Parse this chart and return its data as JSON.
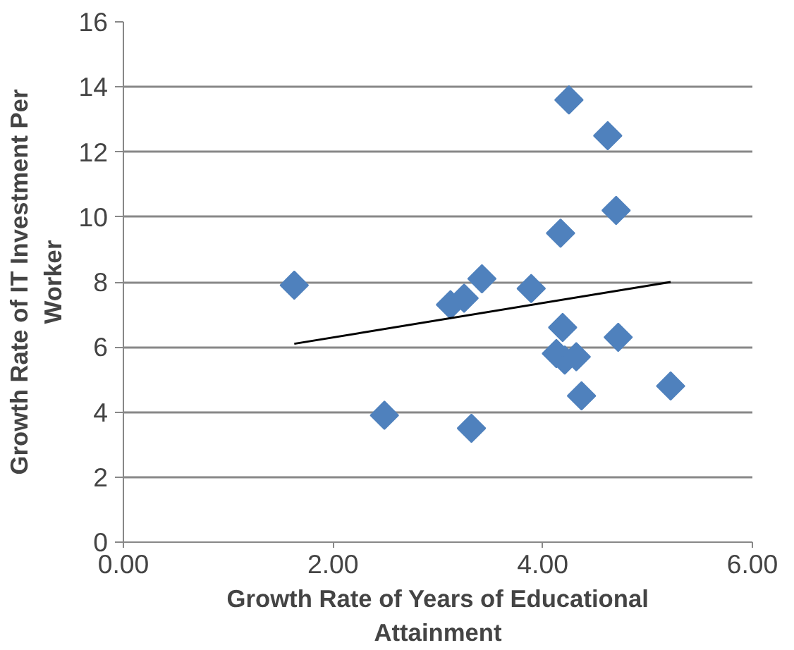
{
  "chart_data": {
    "type": "scatter",
    "xlabel": "Growth Rate of Years of Educational Attainment",
    "ylabel": "Growth Rate of IT Investment Per Worker",
    "xlim": [
      0,
      6
    ],
    "ylim": [
      0,
      16
    ],
    "xticks": [
      {
        "value": 0,
        "label": "0.00"
      },
      {
        "value": 2,
        "label": "2.00"
      },
      {
        "value": 4,
        "label": "4.00"
      },
      {
        "value": 6,
        "label": "6.00"
      }
    ],
    "yticks": [
      0,
      2,
      4,
      6,
      8,
      10,
      12,
      14,
      16
    ],
    "grid": "y",
    "marker": "diamond",
    "series": [
      {
        "color": "#4f81bd",
        "x": [
          1.63,
          2.49,
          3.32,
          3.12,
          3.25,
          3.42,
          3.89,
          4.25,
          4.62,
          4.7,
          4.17,
          4.19,
          4.13,
          4.21,
          4.32,
          4.37,
          4.72,
          5.22
        ],
        "values": [
          7.9,
          3.9,
          3.5,
          7.3,
          7.5,
          8.1,
          7.8,
          13.6,
          12.5,
          10.2,
          9.5,
          6.6,
          5.8,
          5.6,
          5.7,
          4.5,
          6.3,
          4.8
        ]
      },
      {
        "type": "line",
        "marker": "none",
        "color": "#000000",
        "x": [
          1.63,
          5.22
        ],
        "values": [
          6.1,
          8.0
        ]
      }
    ]
  }
}
